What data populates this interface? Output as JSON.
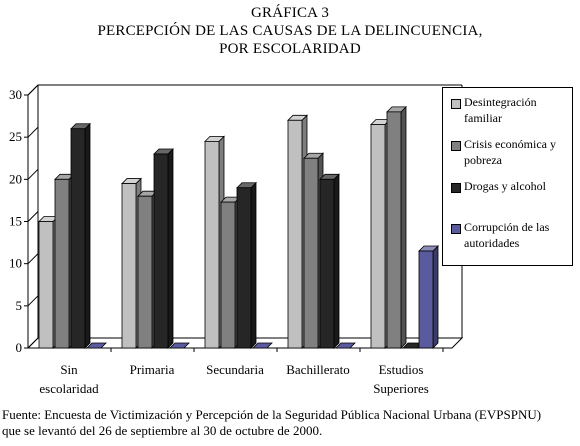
{
  "title": {
    "line1": "GRÁFICA 3",
    "line2": "PERCEPCIÓN DE LAS CAUSAS DE LA DELINCUENCIA,",
    "line3": "POR ESCOLARIDAD"
  },
  "footer": {
    "line1": "Fuente: Encuesta de Victimización y Percepción de la Seguridad Pública Nacional Urbana (EVPSPNU)",
    "line2": "que se levantó del 26 de septiembre al 30 de octubre de 2000."
  },
  "chart_data": {
    "type": "bar",
    "categories": [
      [
        "Sin",
        "escolaridad"
      ],
      [
        "Primaria"
      ],
      [
        "Secundaria"
      ],
      [
        "Bachillerato"
      ],
      [
        "Estudios",
        "Superiores"
      ]
    ],
    "series": [
      {
        "name_lines": [
          "Desintegración",
          "familiar"
        ],
        "color": "#c0c0c0",
        "values": [
          15,
          19.5,
          24.5,
          27,
          26.5
        ]
      },
      {
        "name_lines": [
          "Crisis económica y",
          "pobreza"
        ],
        "color": "#808080",
        "values": [
          20,
          18,
          17.3,
          22.5,
          28
        ]
      },
      {
        "name_lines": [
          "Drogas y alcohol"
        ],
        "color": "#262626",
        "values": [
          26,
          23,
          19,
          20,
          0
        ]
      },
      {
        "name_lines": [
          "Corrupción de las",
          "autoridades"
        ],
        "color": "#5a5a9e",
        "values": [
          0,
          0,
          0,
          0,
          11.5
        ]
      }
    ],
    "yticks": [
      "0",
      "5",
      "10",
      "15",
      "20",
      "25",
      "30"
    ],
    "ylim": [
      0,
      30
    ],
    "grid": false,
    "legend": "right"
  }
}
